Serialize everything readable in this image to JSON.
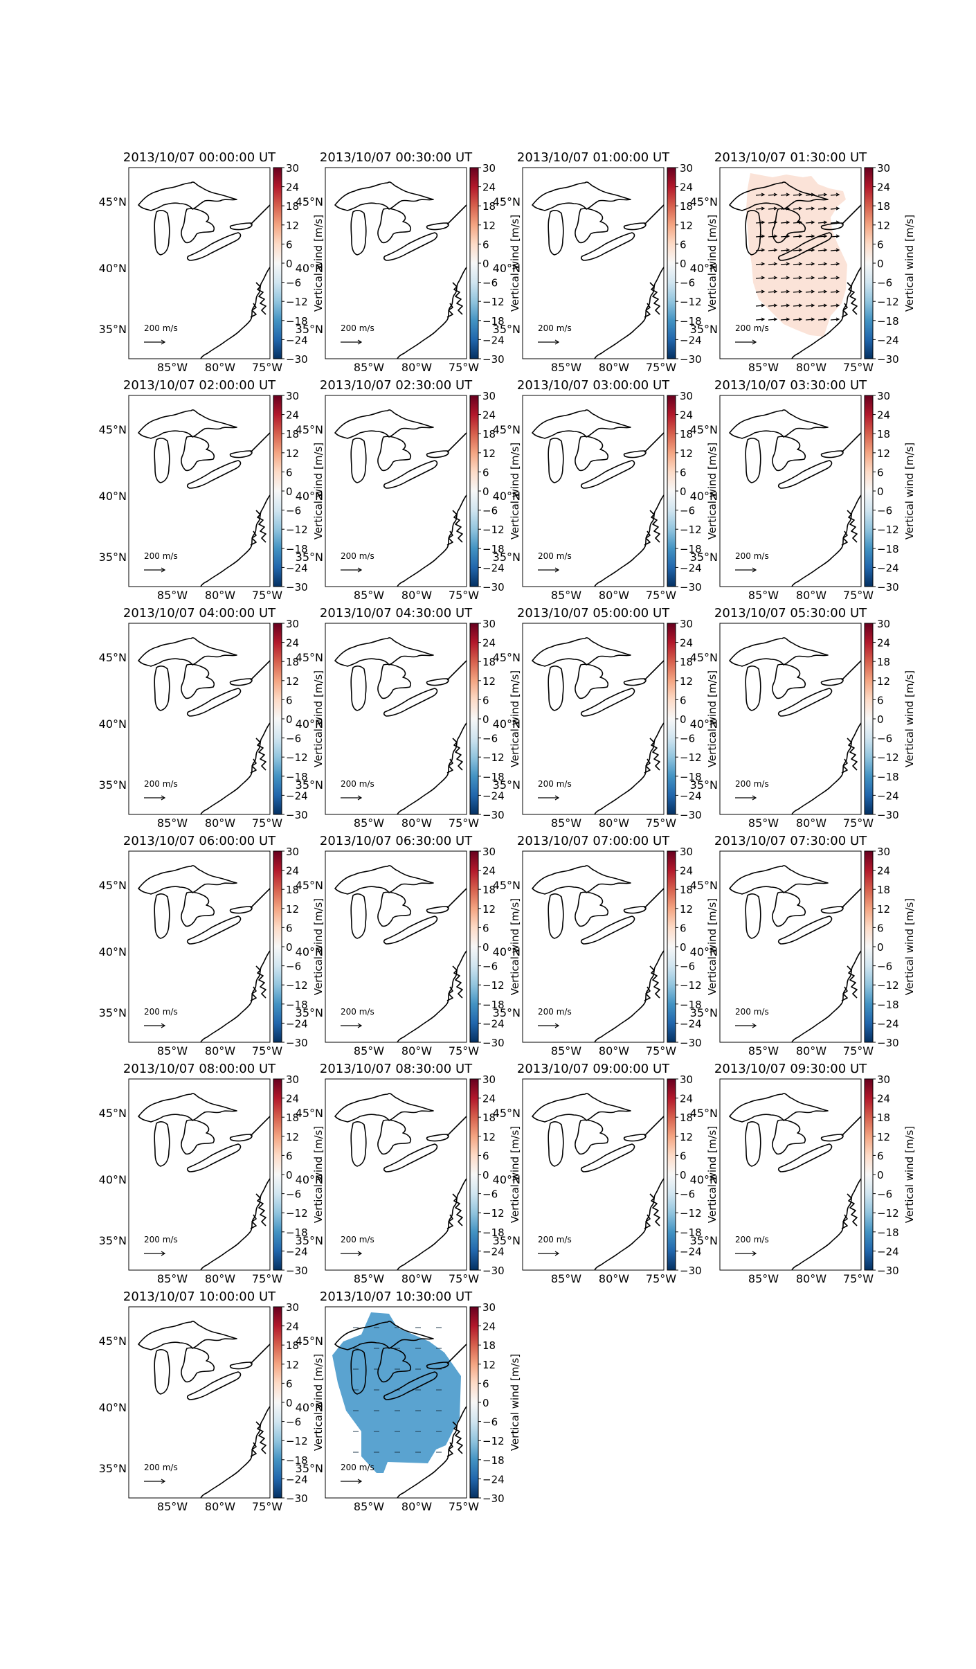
{
  "figure": {
    "colorbar": {
      "label": "Vertical wind [m/s]",
      "ticks": [
        "30",
        "24",
        "18",
        "12",
        "6",
        "0",
        "−6",
        "−12",
        "−18",
        "−24",
        "−30"
      ],
      "colors": [
        "#67001f",
        "#b2182b",
        "#d6604d",
        "#f4a582",
        "#fddbc7",
        "#f7f7f7",
        "#d1e5f0",
        "#92c5de",
        "#4393c3",
        "#2166ac",
        "#053061"
      ]
    },
    "lat_labels": [
      "45°N",
      "40°N",
      "35°N"
    ],
    "lon_labels": [
      "85°W",
      "80°W",
      "75°W"
    ],
    "scale_arrow_label": "200 m/s",
    "panels": [
      {
        "title": "2013/10/07 00:00:00 UT",
        "field": "none",
        "field_color": ""
      },
      {
        "title": "2013/10/07 00:30:00 UT",
        "field": "none",
        "field_color": ""
      },
      {
        "title": "2013/10/07 01:00:00 UT",
        "field": "none",
        "field_color": ""
      },
      {
        "title": "2013/10/07 01:30:00 UT",
        "field": "positive",
        "field_color": "#fbe3d8"
      },
      {
        "title": "2013/10/07 02:00:00 UT",
        "field": "none",
        "field_color": ""
      },
      {
        "title": "2013/10/07 02:30:00 UT",
        "field": "none",
        "field_color": ""
      },
      {
        "title": "2013/10/07 03:00:00 UT",
        "field": "none",
        "field_color": ""
      },
      {
        "title": "2013/10/07 03:30:00 UT",
        "field": "none",
        "field_color": ""
      },
      {
        "title": "2013/10/07 04:00:00 UT",
        "field": "none",
        "field_color": ""
      },
      {
        "title": "2013/10/07 04:30:00 UT",
        "field": "none",
        "field_color": ""
      },
      {
        "title": "2013/10/07 05:00:00 UT",
        "field": "none",
        "field_color": ""
      },
      {
        "title": "2013/10/07 05:30:00 UT",
        "field": "none",
        "field_color": ""
      },
      {
        "title": "2013/10/07 06:00:00 UT",
        "field": "none",
        "field_color": ""
      },
      {
        "title": "2013/10/07 06:30:00 UT",
        "field": "none",
        "field_color": ""
      },
      {
        "title": "2013/10/07 07:00:00 UT",
        "field": "none",
        "field_color": ""
      },
      {
        "title": "2013/10/07 07:30:00 UT",
        "field": "none",
        "field_color": ""
      },
      {
        "title": "2013/10/07 08:00:00 UT",
        "field": "none",
        "field_color": ""
      },
      {
        "title": "2013/10/07 08:30:00 UT",
        "field": "none",
        "field_color": ""
      },
      {
        "title": "2013/10/07 09:00:00 UT",
        "field": "none",
        "field_color": ""
      },
      {
        "title": "2013/10/07 09:30:00 UT",
        "field": "none",
        "field_color": ""
      },
      {
        "title": "2013/10/07 10:00:00 UT",
        "field": "none",
        "field_color": ""
      },
      {
        "title": "2013/10/07 10:30:00 UT",
        "field": "negative",
        "field_color": "#5aa3d0"
      }
    ]
  }
}
